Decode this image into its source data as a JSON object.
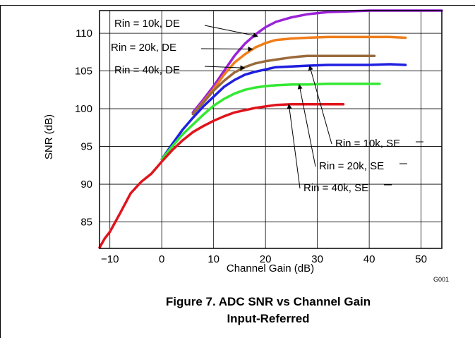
{
  "figure": {
    "caption_line1": "Figure 7. ADC SNR vs Channel Gain",
    "caption_line2": "Input-Referred",
    "code": "G001"
  },
  "chart_data": {
    "type": "line",
    "xlabel": "Channel Gain (dB)",
    "ylabel": "SNR (dB)",
    "xlim": [
      -12,
      54
    ],
    "ylim": [
      81.5,
      113
    ],
    "xticks": [
      -10,
      0,
      10,
      20,
      30,
      40,
      50
    ],
    "yticks": [
      85,
      90,
      95,
      100,
      105,
      110
    ],
    "grid": true,
    "series": [
      {
        "name": "Rin = 10k, DE",
        "color": "#9b22d6",
        "x": [
          6,
          8,
          10,
          12,
          14,
          16,
          18,
          20,
          22,
          25,
          28,
          32,
          36,
          40,
          44,
          48,
          52,
          54
        ],
        "y": [
          99.5,
          101.2,
          103,
          105,
          107,
          108.6,
          109.8,
          110.8,
          111.5,
          112.1,
          112.5,
          112.8,
          112.9,
          113,
          113,
          113,
          113,
          113
        ]
      },
      {
        "name": "Rin = 20k, DE",
        "color": "#f07d1a",
        "x": [
          6,
          8,
          10,
          12,
          14,
          16,
          18,
          20,
          22,
          25,
          28,
          32,
          36,
          40,
          44,
          47
        ],
        "y": [
          99.3,
          100.9,
          102.6,
          104.5,
          106.1,
          107.2,
          108.1,
          108.7,
          109.1,
          109.3,
          109.4,
          109.5,
          109.5,
          109.5,
          109.5,
          109.4
        ]
      },
      {
        "name": "Rin = 40k, DE",
        "color": "#9a6a3c",
        "x": [
          6,
          8,
          10,
          12,
          14,
          16,
          18,
          20,
          22,
          25,
          28,
          32,
          36,
          40,
          41
        ],
        "y": [
          99.3,
          100.8,
          102.4,
          103.7,
          104.8,
          105.5,
          106,
          106.3,
          106.5,
          106.8,
          107,
          107,
          107,
          107,
          107
        ]
      },
      {
        "name": "Rin = 10k, SE",
        "color": "#1f1fe0",
        "x": [
          0,
          2,
          4,
          6,
          8,
          10,
          12,
          14,
          16,
          18,
          20,
          22,
          25,
          28,
          32,
          36,
          40,
          44,
          47
        ],
        "y": [
          93.3,
          95.3,
          97.2,
          98.8,
          100.3,
          101.6,
          102.9,
          103.8,
          104.5,
          104.9,
          105.2,
          105.5,
          105.6,
          105.7,
          105.8,
          105.8,
          105.8,
          105.9,
          105.8
        ]
      },
      {
        "name": "Rin = 20k, SE",
        "color": "#33e833",
        "x": [
          0,
          2,
          4,
          6,
          8,
          10,
          12,
          14,
          16,
          18,
          20,
          22,
          25,
          28,
          32,
          36,
          40,
          42
        ],
        "y": [
          93.3,
          95,
          96.6,
          97.9,
          99.2,
          100.4,
          101.3,
          102,
          102.5,
          102.8,
          103,
          103.1,
          103.2,
          103.2,
          103.3,
          103.3,
          103.3,
          103.3
        ]
      },
      {
        "name": "Rin = 40k, SE",
        "color": "#e0141c",
        "x": [
          -12,
          -11,
          -10,
          -8,
          -6,
          -4,
          -2,
          0,
          2,
          4,
          6,
          8,
          10,
          12,
          14,
          16,
          18,
          20,
          22,
          25,
          28,
          32,
          35
        ],
        "y": [
          81.6,
          82.8,
          83.7,
          86.2,
          88.8,
          90.3,
          91.4,
          93,
          94.5,
          95.8,
          96.9,
          97.7,
          98.4,
          99,
          99.5,
          99.8,
          100.1,
          100.3,
          100.5,
          100.6,
          100.6,
          100.6,
          100.6
        ]
      }
    ]
  }
}
